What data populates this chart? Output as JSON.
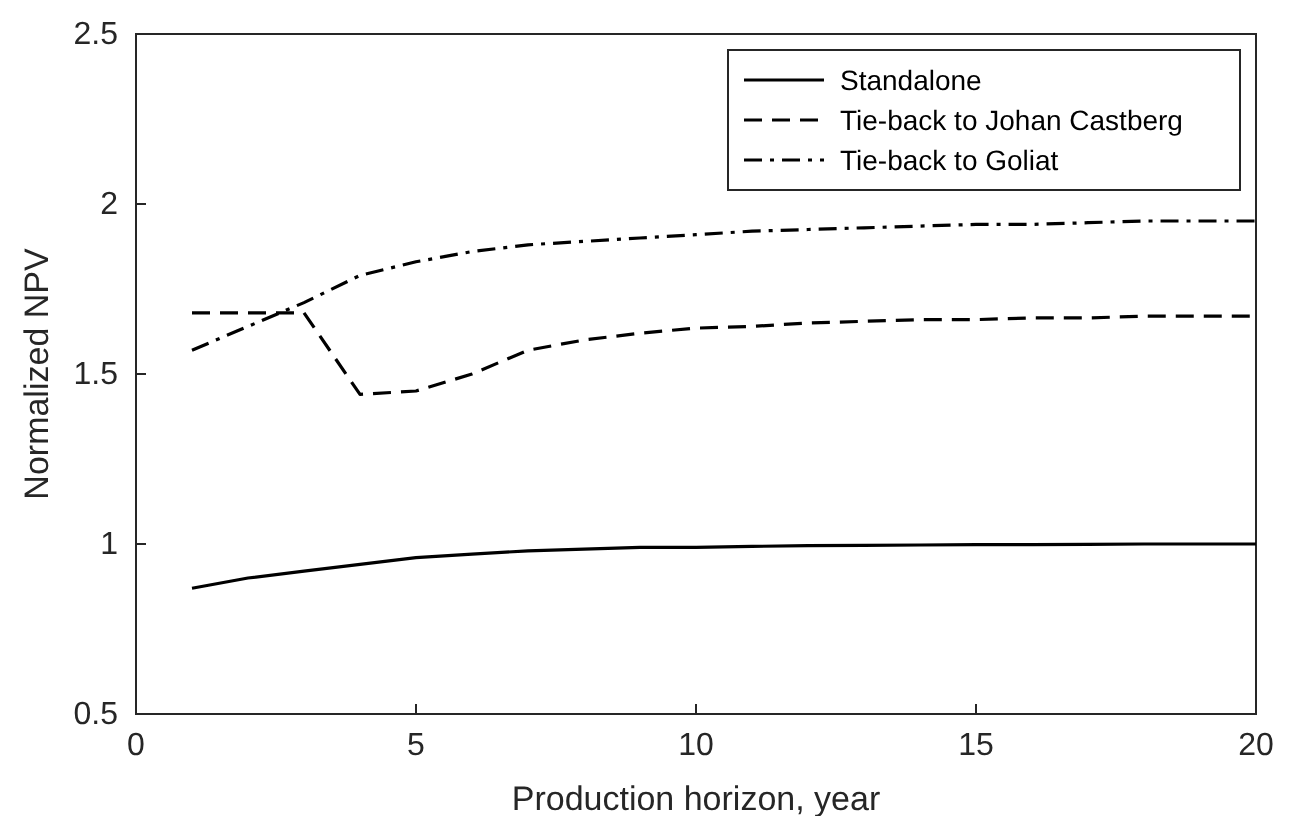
{
  "chart_data": {
    "type": "line",
    "xlabel": "Production horizon, year",
    "ylabel": "Normalized NPV",
    "x": [
      1,
      2,
      3,
      4,
      5,
      6,
      7,
      8,
      9,
      10,
      11,
      12,
      13,
      14,
      15,
      16,
      17,
      18,
      19,
      20
    ],
    "series": [
      {
        "name": "Standalone",
        "color": "#000000",
        "line_style": "solid",
        "values": [
          0.87,
          0.9,
          0.92,
          0.94,
          0.96,
          0.97,
          0.98,
          0.985,
          0.99,
          0.99,
          0.993,
          0.995,
          0.996,
          0.997,
          0.998,
          0.998,
          0.999,
          1.0,
          1.0,
          1.0
        ]
      },
      {
        "name": "Tie-back to Johan Castberg",
        "color": "#000000",
        "line_style": "dashed",
        "values": [
          1.68,
          1.68,
          1.68,
          1.44,
          1.45,
          1.5,
          1.57,
          1.6,
          1.62,
          1.635,
          1.64,
          1.65,
          1.655,
          1.66,
          1.66,
          1.665,
          1.665,
          1.67,
          1.67,
          1.67
        ]
      },
      {
        "name": "Tie-back to Goliat",
        "color": "#000000",
        "line_style": "dashdot",
        "values": [
          1.57,
          1.64,
          1.71,
          1.79,
          1.83,
          1.86,
          1.88,
          1.89,
          1.9,
          1.91,
          1.92,
          1.925,
          1.93,
          1.935,
          1.94,
          1.94,
          1.945,
          1.95,
          1.95,
          1.95
        ]
      }
    ],
    "xlim": [
      0,
      20
    ],
    "xticks": [
      0,
      5,
      10,
      15,
      20
    ],
    "ylim": [
      0.5,
      2.5
    ],
    "yticks": [
      0.5,
      1,
      1.5,
      2,
      2.5
    ],
    "legend": "top right",
    "grid": false,
    "marker": "none"
  }
}
